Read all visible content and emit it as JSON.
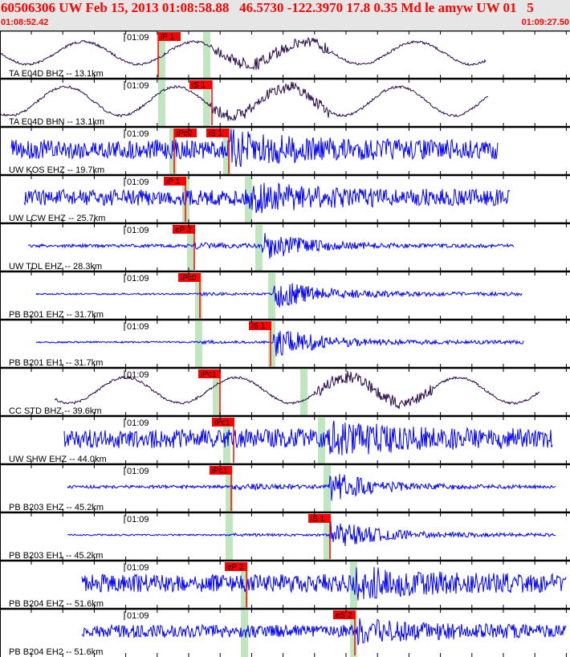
{
  "header": {
    "title": "60506306 UW Feb 15, 2013 01:08:58.88   46.5730 -122.3970 17.8 0.35 Md le amyw UW 01   5",
    "start_time": "01:08:52.42",
    "end_time": "01:09:27.50"
  },
  "minute_label": "01:09",
  "colors": {
    "broadband": "#2a0a4a",
    "short_period": "#0000ff",
    "pick": "#ff0000",
    "window": "#bfe6bf",
    "header_bg": "#e6e6e6"
  },
  "channels": [
    {
      "label": "TA E04D BHZ -- 13.1km",
      "picks": [
        "iP 1"
      ]
    },
    {
      "label": "TA E04D BHN -- 13.1km",
      "picks": [
        "iS 1"
      ]
    },
    {
      "label": "UW KOS EHZ -- 19.7km",
      "picks": [
        "iPc0",
        "iS 1"
      ]
    },
    {
      "label": "UW LCW EHZ -- 25.7km",
      "picks": [
        "iP 1"
      ]
    },
    {
      "label": "UW TDL EHZ -- 28.3km",
      "picks": [
        "eP 2"
      ]
    },
    {
      "label": "PB B201 EHZ -- 31.7km",
      "picks": [
        "iPc0"
      ]
    },
    {
      "label": "PB B201 EH1 -- 31.7km",
      "picks": [
        "iS 1"
      ]
    },
    {
      "label": "CC STD BHZ -- 39.6km",
      "picks": [
        "iPc1"
      ]
    },
    {
      "label": "UW SHW EHZ -- 44.0km",
      "picks": [
        "iPc1"
      ]
    },
    {
      "label": "PB B203 EHZ -- 45.2km",
      "picks": [
        "iPc1"
      ]
    },
    {
      "label": "PB B203 EH1 -- 45.2km",
      "picks": [
        "iS 1"
      ]
    },
    {
      "label": "PB B204 EHZ -- 51.6km",
      "picks": [
        "eP 2"
      ]
    },
    {
      "label": "PB B204 EH2 -- 51.6km",
      "picks": [
        "eS 2"
      ]
    }
  ]
}
